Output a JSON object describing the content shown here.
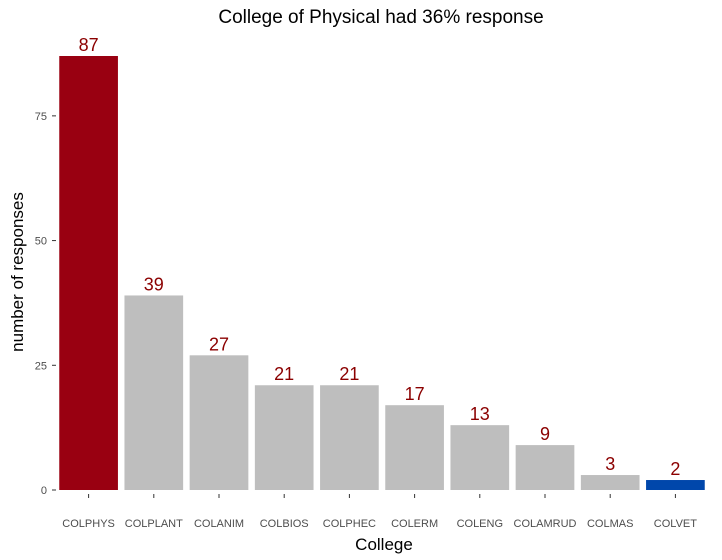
{
  "chart_data": {
    "type": "bar",
    "title": "College of Physical had 36% response",
    "xlabel": "College",
    "ylabel": "number of responses",
    "categories": [
      "COLPHYS",
      "COLPLANT",
      "COLANIM",
      "COLBIOS",
      "COLPHEC",
      "COLERM",
      "COLENG",
      "COLAMRUD",
      "COLMAS",
      "COLVET"
    ],
    "values": [
      87,
      39,
      27,
      21,
      21,
      17,
      13,
      9,
      3,
      2
    ],
    "bar_colors": [
      "#990011",
      "#bebebe",
      "#bebebe",
      "#bebebe",
      "#bebebe",
      "#bebebe",
      "#bebebe",
      "#bebebe",
      "#bebebe",
      "#0047ab"
    ],
    "data_label_color": "#8b0000",
    "y_ticks": [
      0,
      25,
      50,
      75
    ],
    "ylim": [
      0,
      87
    ],
    "grid": false,
    "legend": "none"
  }
}
